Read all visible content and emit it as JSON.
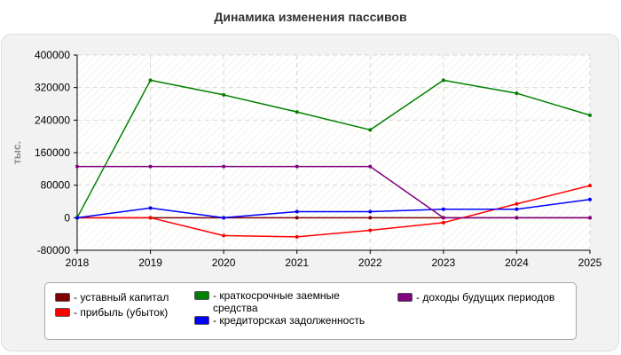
{
  "chart_data": {
    "type": "line",
    "title": "Динамика изменения пассивов",
    "ylabel": "тыс.",
    "xlabel": "",
    "x": [
      2018,
      2019,
      2020,
      2021,
      2022,
      2023,
      2024,
      2025
    ],
    "ylim": [
      -80000,
      400000
    ],
    "yticks": [
      -80000,
      0,
      80000,
      160000,
      240000,
      320000,
      400000
    ],
    "grid": true,
    "legend_position": "bottom",
    "series": [
      {
        "name": "- уставный капитал",
        "color": "#7f0000",
        "values": [
          0,
          0,
          0,
          0,
          0,
          0,
          0,
          0
        ]
      },
      {
        "name": "- прибыль (убыток)",
        "color": "#ff0000",
        "values": [
          0,
          0,
          -44000,
          -47000,
          -31000,
          -12000,
          34000,
          79000
        ]
      },
      {
        "name": "- краткосрочные заемные средства",
        "color": "#008000",
        "values": [
          0,
          338000,
          302000,
          260000,
          216000,
          338000,
          306000,
          252000
        ]
      },
      {
        "name": "- кредиторская задолженность",
        "color": "#0000ff",
        "values": [
          0,
          24000,
          0,
          15000,
          15000,
          21000,
          21000,
          45000
        ]
      },
      {
        "name": "- доходы будущих периодов",
        "color": "#800080",
        "values": [
          126000,
          126000,
          126000,
          126000,
          126000,
          0,
          0,
          0
        ]
      }
    ]
  }
}
